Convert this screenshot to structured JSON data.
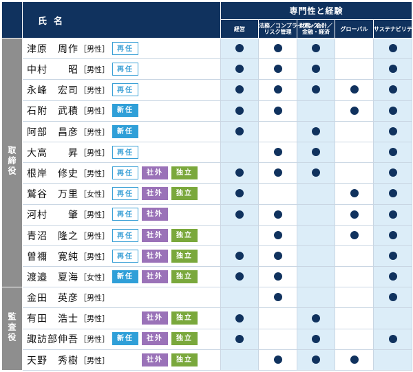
{
  "header": {
    "name_label": "氏名",
    "expertise_label": "専門性と経験",
    "skills": [
      {
        "lines": [
          "経営"
        ]
      },
      {
        "lines": [
          "法務／コンプライアンス／",
          "リスク管理"
        ]
      },
      {
        "lines": [
          "財務／会計／",
          "金融・経済"
        ]
      },
      {
        "lines": [
          "グローバル"
        ]
      },
      {
        "lines": [
          "サステナビリティ"
        ]
      }
    ]
  },
  "groups": [
    {
      "role": "取締役",
      "members": [
        {
          "name": "津原　周作",
          "gender": "［男性］",
          "badges": [
            "再任",
            "",
            ""
          ],
          "skills": [
            true,
            true,
            true,
            false,
            true
          ]
        },
        {
          "name": "中村　　昭",
          "gender": "［男性］",
          "badges": [
            "再任",
            "",
            ""
          ],
          "skills": [
            true,
            true,
            true,
            false,
            true
          ]
        },
        {
          "name": "永峰　宏司",
          "gender": "［男性］",
          "badges": [
            "再任",
            "",
            ""
          ],
          "skills": [
            true,
            true,
            true,
            true,
            true
          ]
        },
        {
          "name": "石附　武積",
          "gender": "［男性］",
          "badges": [
            "新任",
            "",
            ""
          ],
          "skills": [
            true,
            true,
            false,
            true,
            true
          ]
        },
        {
          "name": "阿部　昌彦",
          "gender": "［男性］",
          "badges": [
            "新任",
            "",
            ""
          ],
          "skills": [
            true,
            false,
            true,
            false,
            true
          ]
        },
        {
          "name": "大高　　昇",
          "gender": "［男性］",
          "badges": [
            "再任",
            "",
            ""
          ],
          "skills": [
            false,
            true,
            true,
            false,
            true
          ]
        },
        {
          "name": "根岸　修史",
          "gender": "［男性］",
          "badges": [
            "再任",
            "社外",
            "独立"
          ],
          "skills": [
            true,
            true,
            true,
            false,
            true
          ]
        },
        {
          "name": "鷲谷　万里",
          "gender": "［女性］",
          "badges": [
            "再任",
            "社外",
            "独立"
          ],
          "skills": [
            true,
            false,
            false,
            true,
            true
          ]
        },
        {
          "name": "河村　　肇",
          "gender": "［男性］",
          "badges": [
            "再任",
            "社外",
            ""
          ],
          "skills": [
            true,
            true,
            false,
            true,
            true
          ]
        },
        {
          "name": "青沼　隆之",
          "gender": "［男性］",
          "badges": [
            "再任",
            "社外",
            "独立"
          ],
          "skills": [
            false,
            true,
            false,
            true,
            true
          ]
        },
        {
          "name": "曽禰　寛純",
          "gender": "［男性］",
          "badges": [
            "再任",
            "社外",
            "独立"
          ],
          "skills": [
            true,
            true,
            false,
            false,
            true
          ]
        },
        {
          "name": "渡邉　夏海",
          "gender": "［女性］",
          "badges": [
            "新任",
            "社外",
            "独立"
          ],
          "skills": [
            true,
            true,
            false,
            false,
            true
          ]
        }
      ]
    },
    {
      "role": "監査役",
      "members": [
        {
          "name": "金田　英彦",
          "gender": "［男性］",
          "badges": [
            "",
            "",
            ""
          ],
          "skills": [
            false,
            true,
            false,
            false,
            true
          ]
        },
        {
          "name": "有田　浩士",
          "gender": "［男性］",
          "badges": [
            "",
            "社外",
            "独立"
          ],
          "skills": [
            true,
            false,
            true,
            false,
            false
          ]
        },
        {
          "name": "諏訪部伸吾",
          "gender": "［男性］",
          "badges": [
            "新任",
            "社外",
            "独立"
          ],
          "skills": [
            true,
            false,
            true,
            false,
            true
          ]
        },
        {
          "name": "天野　秀樹",
          "gender": "［男性］",
          "badges": [
            "",
            "社外",
            "独立"
          ],
          "skills": [
            false,
            true,
            true,
            true,
            false
          ]
        }
      ]
    }
  ],
  "badge_colors": {
    "再任": "#3aa0d6",
    "新任": "#2f9fd8",
    "社外": "#9a72b8",
    "独立": "#7aa83c"
  },
  "colors": {
    "header_navy": "#10325e",
    "role_gray": "#8e8e8e",
    "alt_column": "#dcedf8",
    "dot": "#10325e"
  },
  "icons": {
    "check_mark": "filled-circle-icon"
  }
}
